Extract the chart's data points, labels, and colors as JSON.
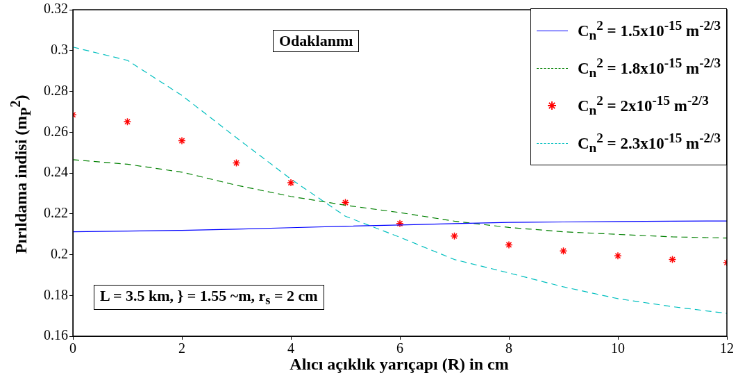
{
  "chart_data": {
    "type": "line",
    "xlabel": "Alıcı açıklık yarıçapı (R) in cm",
    "ylabel": "Pırıldama indisi (m$_{P}$$^{2}$)",
    "x": [
      0,
      1,
      2,
      3,
      4,
      5,
      6,
      7,
      8,
      9,
      10,
      11,
      12
    ],
    "series": [
      {
        "name": "C$_{n}$$^{2}$ = 1.5x10$^{-15}$ m$^{-2/3}$",
        "color": "#0000ff",
        "line_style": "solid",
        "marker": "none",
        "values": [
          0.2112,
          0.2115,
          0.2119,
          0.2125,
          0.2132,
          0.2139,
          0.2145,
          0.2152,
          0.2158,
          0.216,
          0.2162,
          0.2164,
          0.2165
        ]
      },
      {
        "name": "C$_{n}$$^{2}$ = 1.8x10$^{-15}$ m$^{-2/3}$",
        "color": "#008000",
        "line_style": "dashed",
        "marker": "none",
        "values": [
          0.2465,
          0.2443,
          0.2404,
          0.234,
          0.2285,
          0.2242,
          0.2206,
          0.2164,
          0.2133,
          0.2112,
          0.2099,
          0.2087,
          0.2081
        ]
      },
      {
        "name": "C$_{n}$$^{2}$ = 2x10$^{-15}$ m$^{-2/3}$",
        "color": "#ff0000",
        "type": "scatter",
        "marker": "cross",
        "values": [
          0.2685,
          0.2651,
          0.2558,
          0.2449,
          0.2352,
          0.2255,
          0.2152,
          0.2091,
          0.2048,
          0.2018,
          0.1994,
          0.1976,
          0.1961
        ]
      },
      {
        "name": "C$_{n}$$^{2}$ = 2.3x10$^{-15}$ m$^{-2/3}$",
        "color": "#00bfbf",
        "line_style": "dashed",
        "marker": "none",
        "values": [
          0.3017,
          0.2952,
          0.278,
          0.2573,
          0.237,
          0.2188,
          0.2085,
          0.1976,
          0.191,
          0.1842,
          0.1784,
          0.1745,
          0.1712
        ]
      }
    ],
    "xlim": [
      0,
      12
    ],
    "xticks": [
      0,
      2,
      4,
      6,
      8,
      10,
      12
    ],
    "ylim": [
      0.16,
      0.32
    ],
    "yticks": [
      0.16,
      0.18,
      0.2,
      0.22,
      0.24,
      0.26,
      0.28,
      0.3,
      0.32
    ],
    "grid": false,
    "legend": "top right",
    "annotations": [
      "Odaklanmı",
      "L =  3.5 km, } = 1.55 ~m, r$_{s}$ = 2 cm"
    ]
  }
}
